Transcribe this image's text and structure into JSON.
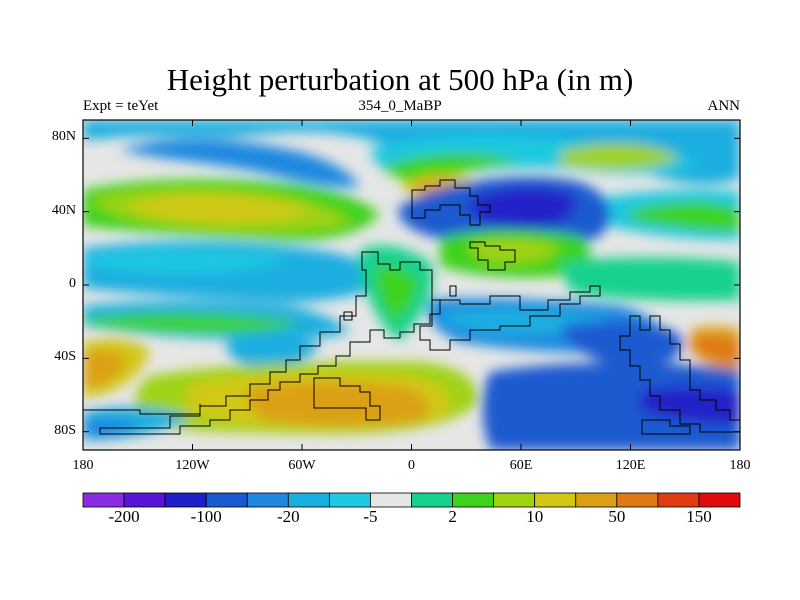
{
  "title": "Height perturbation at 500 hPa (in m)",
  "left_string": "Expt = teYet",
  "center_string": "354_0_MaBP",
  "right_string": "ANN",
  "map": {
    "lon_range": [
      -180,
      180
    ],
    "lat_range": [
      -90,
      90
    ],
    "y_ticks": [
      {
        "lat": 80,
        "label": "80N"
      },
      {
        "lat": 40,
        "label": "40N"
      },
      {
        "lat": 0,
        "label": "0"
      },
      {
        "lat": -40,
        "label": "40S"
      },
      {
        "lat": -80,
        "label": "80S"
      }
    ],
    "x_ticks": [
      {
        "lon": -180,
        "label": "180"
      },
      {
        "lon": -120,
        "label": "120W"
      },
      {
        "lon": -60,
        "label": "60W"
      },
      {
        "lon": 0,
        "label": "0"
      },
      {
        "lon": 60,
        "label": "60E"
      },
      {
        "lon": 120,
        "label": "120E"
      },
      {
        "lon": 180,
        "label": "180"
      }
    ]
  },
  "colorbar": {
    "colors": [
      "#8a2be2",
      "#5a14d6",
      "#2020c8",
      "#1a5ad0",
      "#1e88e0",
      "#1aaee0",
      "#1ec8e0",
      "#e6e6e6",
      "#14d28c",
      "#3cd21e",
      "#a0d214",
      "#d2c814",
      "#dca014",
      "#e07814",
      "#e03c14",
      "#e00a0a"
    ],
    "labels": [
      {
        "after_box": 1,
        "text": "-200"
      },
      {
        "after_box": 3,
        "text": "-100"
      },
      {
        "after_box": 5,
        "text": "-20"
      },
      {
        "after_box": 7,
        "text": "-5"
      },
      {
        "after_box": 9,
        "text": "2"
      },
      {
        "after_box": 11,
        "text": "10"
      },
      {
        "after_box": 13,
        "text": "50"
      },
      {
        "after_box": 15,
        "text": "150"
      }
    ]
  }
}
